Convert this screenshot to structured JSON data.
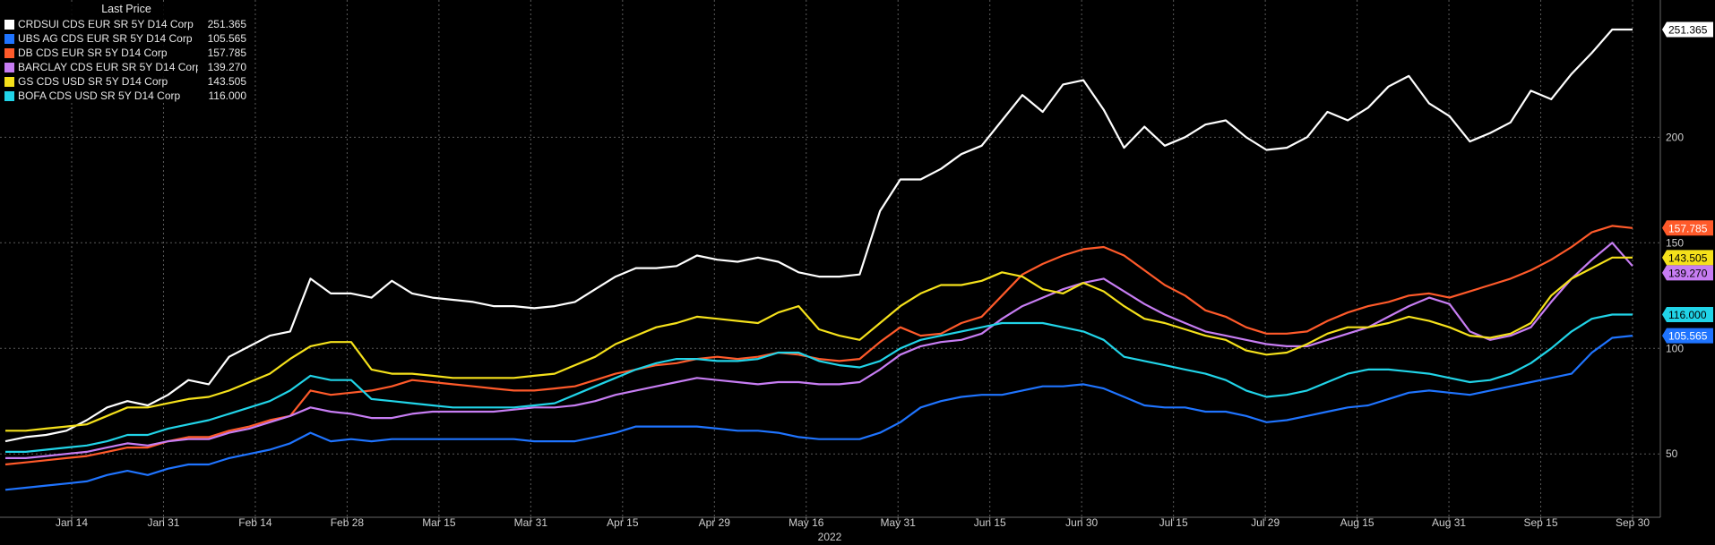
{
  "legend": {
    "header": "Last Price"
  },
  "chart_data": {
    "type": "line",
    "x_year_label": "2022",
    "x_ticks": [
      "Jan 14",
      "Jan 31",
      "Feb 14",
      "Feb 28",
      "Mar 15",
      "Mar 31",
      "Apr 15",
      "Apr 29",
      "May 16",
      "May 31",
      "Jun 15",
      "Jun 30",
      "Jul 15",
      "Jul 29",
      "Aug 15",
      "Aug 31",
      "Sep 15",
      "Sep 30"
    ],
    "y_ticks": [
      50,
      100,
      150,
      200
    ],
    "ylim": [
      20,
      265
    ],
    "grid": true,
    "legend_position": "top-left",
    "series": [
      {
        "name": "CRDSUI CDS EUR SR 5Y D14 Corp",
        "last": "251.365",
        "color": "#ffffff",
        "badge_text_color": "#000000",
        "values": [
          56,
          58,
          59,
          61,
          66,
          72,
          75,
          73,
          78,
          85,
          83,
          96,
          101,
          106,
          108,
          133,
          126,
          126,
          124,
          132,
          126,
          124,
          123,
          122,
          120,
          120,
          119,
          120,
          122,
          128,
          134,
          138,
          138,
          139,
          144,
          142,
          141,
          143,
          141,
          136,
          134,
          134,
          135,
          165,
          180,
          180,
          185,
          192,
          196,
          208,
          220,
          212,
          225,
          227,
          213,
          195,
          205,
          196,
          200,
          206,
          208,
          200,
          194,
          195,
          200,
          212,
          208,
          214,
          224,
          229,
          216,
          210,
          198,
          202,
          207,
          222,
          218,
          230,
          240,
          251,
          251
        ]
      },
      {
        "name": "UBS AG CDS EUR SR 5Y D14 Corp",
        "last": "105.565",
        "color": "#1f74ff",
        "badge_text_color": "#ffffff",
        "values": [
          33,
          34,
          35,
          36,
          37,
          40,
          42,
          40,
          43,
          45,
          45,
          48,
          50,
          52,
          55,
          60,
          56,
          57,
          56,
          57,
          57,
          57,
          57,
          57,
          57,
          57,
          56,
          56,
          56,
          58,
          60,
          63,
          63,
          63,
          63,
          62,
          61,
          61,
          60,
          58,
          57,
          57,
          57,
          60,
          65,
          72,
          75,
          77,
          78,
          78,
          80,
          82,
          82,
          83,
          81,
          77,
          73,
          72,
          72,
          70,
          70,
          68,
          65,
          66,
          68,
          70,
          72,
          73,
          76,
          79,
          80,
          79,
          78,
          80,
          82,
          84,
          86,
          88,
          98,
          105,
          106
        ]
      },
      {
        "name": "DB CDS EUR SR 5Y D14 Corp",
        "last": "157.785",
        "color": "#ff5a2a",
        "badge_text_color": "#ffffff",
        "values": [
          45,
          46,
          47,
          48,
          49,
          51,
          53,
          53,
          56,
          58,
          58,
          61,
          63,
          66,
          68,
          80,
          78,
          79,
          80,
          82,
          85,
          84,
          83,
          82,
          81,
          80,
          80,
          81,
          82,
          85,
          88,
          90,
          92,
          93,
          95,
          96,
          95,
          96,
          98,
          97,
          95,
          94,
          95,
          103,
          110,
          106,
          107,
          112,
          115,
          125,
          135,
          140,
          144,
          147,
          148,
          144,
          137,
          130,
          125,
          118,
          115,
          110,
          107,
          107,
          108,
          113,
          117,
          120,
          122,
          125,
          126,
          124,
          127,
          130,
          133,
          137,
          142,
          148,
          155,
          158,
          157
        ]
      },
      {
        "name": "BARCLAY CDS EUR SR 5Y D14 Corp",
        "last": "139.270",
        "color": "#c77df3",
        "badge_text_color": "#000000",
        "values": [
          48,
          48,
          49,
          50,
          51,
          53,
          55,
          54,
          56,
          57,
          57,
          60,
          62,
          65,
          68,
          72,
          70,
          69,
          67,
          67,
          69,
          70,
          70,
          70,
          70,
          71,
          72,
          72,
          73,
          75,
          78,
          80,
          82,
          84,
          86,
          85,
          84,
          83,
          84,
          84,
          83,
          83,
          84,
          90,
          97,
          101,
          103,
          104,
          107,
          114,
          120,
          124,
          128,
          131,
          133,
          127,
          121,
          116,
          112,
          108,
          106,
          104,
          102,
          101,
          101,
          104,
          107,
          110,
          115,
          120,
          124,
          121,
          108,
          104,
          106,
          110,
          122,
          133,
          142,
          150,
          139
        ]
      },
      {
        "name": "GS CDS USD SR 5Y D14 Corp",
        "last": "143.505",
        "color": "#f5e11b",
        "badge_text_color": "#000000",
        "values": [
          61,
          61,
          62,
          63,
          64,
          68,
          72,
          72,
          74,
          76,
          77,
          80,
          84,
          88,
          95,
          101,
          103,
          103,
          90,
          88,
          88,
          87,
          86,
          86,
          86,
          86,
          87,
          88,
          92,
          96,
          102,
          106,
          110,
          112,
          115,
          114,
          113,
          112,
          117,
          120,
          109,
          106,
          104,
          112,
          120,
          126,
          130,
          130,
          132,
          136,
          134,
          128,
          126,
          131,
          127,
          120,
          114,
          112,
          109,
          106,
          104,
          99,
          97,
          98,
          102,
          107,
          110,
          110,
          112,
          115,
          113,
          110,
          106,
          105,
          107,
          112,
          125,
          133,
          138,
          143,
          143
        ]
      },
      {
        "name": "BOFA CDS USD SR 5Y D14 Corp",
        "last": "116.000",
        "color": "#21d4e8",
        "badge_text_color": "#000000",
        "values": [
          51,
          51,
          52,
          53,
          54,
          56,
          59,
          59,
          62,
          64,
          66,
          69,
          72,
          75,
          80,
          87,
          85,
          85,
          76,
          75,
          74,
          73,
          72,
          72,
          72,
          72,
          73,
          74,
          78,
          82,
          86,
          90,
          93,
          95,
          95,
          94,
          94,
          95,
          98,
          98,
          94,
          92,
          91,
          94,
          100,
          104,
          106,
          108,
          110,
          112,
          112,
          112,
          110,
          108,
          104,
          96,
          94,
          92,
          90,
          88,
          85,
          80,
          77,
          78,
          80,
          84,
          88,
          90,
          90,
          89,
          88,
          86,
          84,
          85,
          88,
          93,
          100,
          108,
          114,
          116,
          116
        ]
      }
    ]
  }
}
